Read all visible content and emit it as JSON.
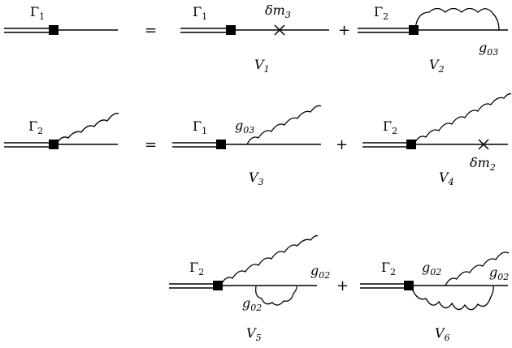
{
  "operators": {
    "equals": "=",
    "plus": "+"
  },
  "labels": {
    "Gamma": "Γ",
    "one": "1",
    "two": "2",
    "delta_m3": "δm",
    "three": "3",
    "delta_m2": "δm",
    "g": "g",
    "g03_sub": "03",
    "g02_sub": "02",
    "V": "V",
    "V1": "1",
    "V2": "2",
    "V3": "3",
    "V4": "4",
    "V5": "5",
    "V6": "6"
  }
}
